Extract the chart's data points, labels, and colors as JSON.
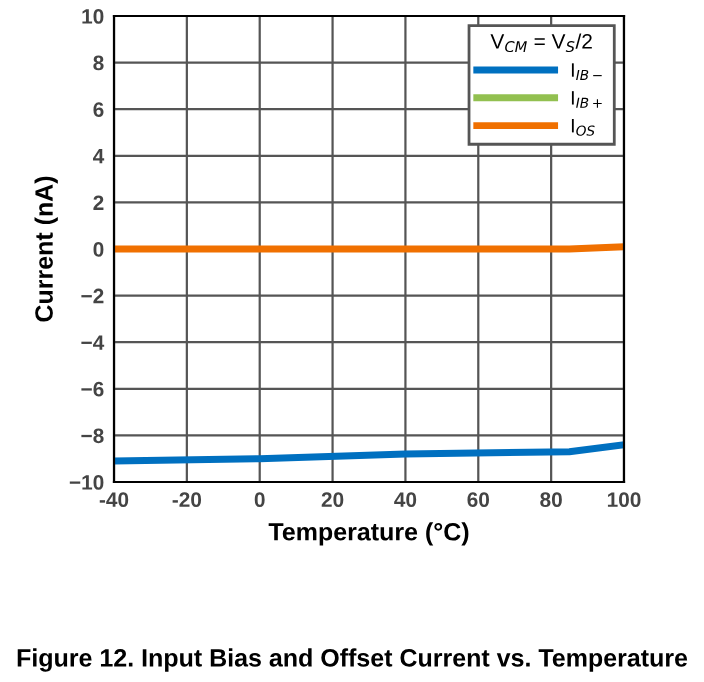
{
  "chart_data": {
    "type": "line",
    "title": "Figure 12. Input Bias and Offset Current vs. Temperature",
    "xlabel": "Temperature (°C)",
    "ylabel": "Current (nA)",
    "legend_title": "V$_{CM}$ = V$_{S}$/2",
    "x": [
      -40,
      0,
      40,
      85,
      100
    ],
    "series": [
      {
        "name": "I$_{IB−}$",
        "color": "#0070c0",
        "values": [
          -9.1,
          -9.0,
          -8.8,
          -8.7,
          -8.4
        ]
      },
      {
        "name": "I$_{IB+}$",
        "color": "#92c050",
        "values": [
          null,
          null,
          null,
          null,
          null
        ]
      },
      {
        "name": "I$_{OS}$",
        "color": "#f07000",
        "values": [
          0,
          0,
          0,
          0,
          0.1
        ]
      }
    ],
    "xlim": [
      -40,
      100
    ],
    "xticks": [
      -40,
      -20,
      0,
      20,
      40,
      60,
      80,
      100
    ],
    "ylim": [
      -10,
      10
    ],
    "yticks": [
      -10,
      -8,
      -6,
      -4,
      -2,
      0,
      2,
      4,
      6,
      8,
      10
    ],
    "grid": true,
    "legend": "top right",
    "marker": "none",
    "line_style": "solid"
  }
}
